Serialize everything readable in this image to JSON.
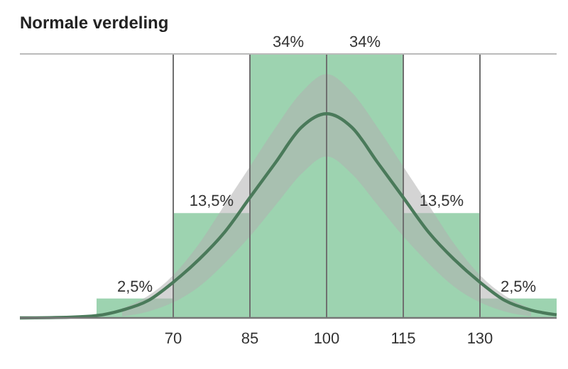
{
  "chart_data": {
    "type": "histogram",
    "title": "Normale verdeling",
    "bins": [
      55,
      70,
      85,
      100,
      115,
      130,
      145
    ],
    "values": [
      2.5,
      13.5,
      34,
      34,
      13.5,
      2.5
    ],
    "value_labels": [
      "2,5%",
      "13,5%",
      "34%",
      "34%",
      "13,5%",
      "2,5%"
    ],
    "color": "#9dd3b0",
    "series": [
      {
        "type": "line",
        "color": "#4a7a5a",
        "x": [
          40,
          50,
          55,
          60,
          65,
          70,
          75,
          80,
          85,
          90,
          95,
          100,
          105,
          110,
          115,
          120,
          125,
          130,
          135,
          140,
          145
        ],
        "values": [
          0,
          0.1,
          0.3,
          1,
          2.2,
          4.6,
          7.5,
          11,
          15.5,
          20,
          24.5,
          26.3,
          24.5,
          20,
          15.5,
          11,
          7.5,
          4.6,
          2.2,
          1,
          0.4
        ],
        "lower": [
          null,
          null,
          null,
          0.2,
          0.8,
          2,
          4,
          7,
          10.5,
          14.5,
          18.5,
          20.8,
          18.5,
          14.5,
          10.5,
          7,
          4,
          2,
          0.8,
          0.2,
          null
        ],
        "upper": [
          null,
          null,
          null,
          1.2,
          2.8,
          5.5,
          9.5,
          14.5,
          19.5,
          24.5,
          29,
          31.4,
          29,
          24.5,
          19.5,
          14.5,
          9.5,
          5.5,
          2.8,
          1.2,
          null
        ]
      }
    ],
    "xlim": [
      40,
      145
    ],
    "xticks": [
      70,
      85,
      100,
      115,
      130
    ],
    "ylim": [
      0,
      34
    ],
    "grid": "x",
    "tick_labels": "x"
  }
}
